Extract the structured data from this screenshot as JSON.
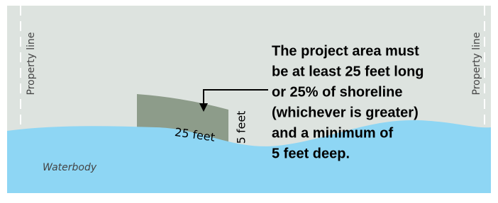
{
  "left_label": "Property line",
  "right_label": "Property line",
  "water_label": "Waterbody",
  "length_label": "25 feet",
  "depth_label": "5 feet",
  "annotation": {
    "lines": [
      "The project area must",
      "be at least 25 feet long",
      "or 25% of shoreline",
      "(whichever is greater)",
      "and a minimum of",
      "5 feet deep."
    ]
  }
}
